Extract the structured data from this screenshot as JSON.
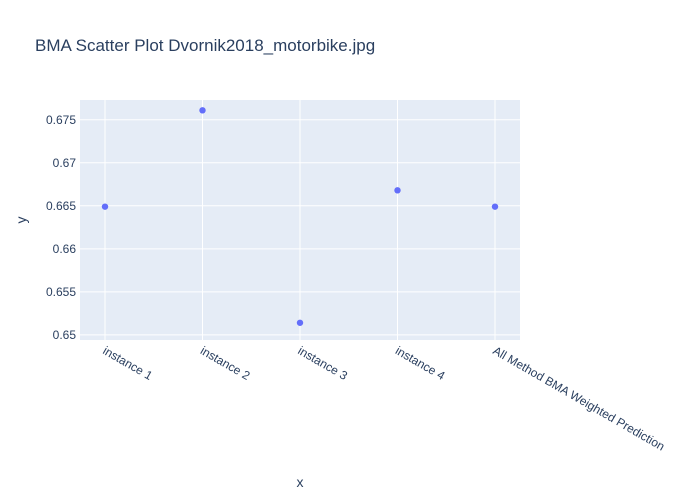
{
  "chart_data": {
    "type": "scatter",
    "title": "BMA Scatter Plot Dvornik2018_motorbike.jpg",
    "xlabel": "x",
    "ylabel": "y",
    "categories": [
      "instance 1",
      "instance 2",
      "instance 3",
      "instance 4",
      "All Method BMA Weighted Prediction"
    ],
    "values": [
      0.6649,
      0.6761,
      0.6514,
      0.6668,
      0.6649
    ],
    "ylim": [
      0.6494,
      0.6773
    ],
    "yticks": [
      0.65,
      0.655,
      0.66,
      0.665,
      0.67,
      0.675
    ],
    "ytick_labels": [
      "0.65",
      "0.655",
      "0.66",
      "0.665",
      "0.67",
      "0.675"
    ],
    "grid": true,
    "colors": {
      "marker": "#636efa",
      "plot_bg": "#e5ecf6",
      "grid": "#ffffff",
      "text": "#2a3f5f"
    }
  }
}
